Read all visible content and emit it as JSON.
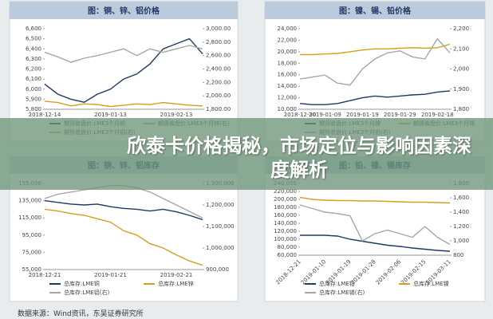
{
  "headline": "欣泰卡价格揭秘，市场定位与影响因素深度解析",
  "source": "数据来源：Wind资讯，东吴证券研究所",
  "chart_data": [
    {
      "type": "line",
      "title": "图：铜、锌、铝价格",
      "categories": [
        "2018-12-14",
        null,
        null,
        null,
        null,
        "2019-01-13",
        null,
        null,
        null,
        null,
        "2019-02-13",
        null,
        null
      ],
      "ylim": [
        5800,
        6600
      ],
      "yticks": [
        {
          "value": 5800,
          "label": "5,800"
        },
        {
          "value": 5900,
          "label": "5,900"
        },
        {
          "value": 6000,
          "label": "6,000"
        },
        {
          "value": 6100,
          "label": "6,100"
        },
        {
          "value": 6200,
          "label": "6,200"
        },
        {
          "value": 6300,
          "label": "6,300"
        },
        {
          "value": 6400,
          "label": "6,400"
        },
        {
          "value": 6500,
          "label": "6,500"
        },
        {
          "value": 6600,
          "label": "6,600"
        }
      ],
      "y2lim": [
        1800,
        3000
      ],
      "y2ticks": [
        {
          "value": 1800,
          "label": "1,800.00"
        },
        {
          "value": 2000,
          "label": "2,000.00"
        },
        {
          "value": 2200,
          "label": "2,200.00"
        },
        {
          "value": 2400,
          "label": "2,400.00"
        },
        {
          "value": 2600,
          "label": "2,600.00"
        },
        {
          "value": 2800,
          "label": "2,800.00"
        },
        {
          "value": 3000,
          "label": "3,000.00"
        }
      ],
      "series": [
        {
          "name": "期货收盘价:LME3个月铜",
          "color": "#1f3864",
          "values": [
            6050,
            5950,
            5900,
            5870,
            5950,
            6000,
            6100,
            6150,
            6250,
            6400,
            6450,
            6500,
            6350
          ]
        },
        {
          "name": "期货收盘价:LME3个月锌(右)",
          "color": "#a6a6a6",
          "axis": "y2",
          "values": [
            2650,
            2580,
            2500,
            2560,
            2600,
            2650,
            2700,
            2600,
            2700,
            2650,
            2700,
            2750,
            2700
          ]
        },
        {
          "name": "期货收盘价:LME3个月铝(右)",
          "color": "#d4a017",
          "axis": "y2",
          "values": [
            1920,
            1900,
            1850,
            1880,
            1870,
            1840,
            1860,
            1880,
            1870,
            1900,
            1880,
            1860,
            1850
          ]
        }
      ]
    },
    {
      "type": "line",
      "title": "图：镍、锡、铅价格",
      "categories": [
        "2018-12-30",
        null,
        "2019-01-09",
        null,
        null,
        "2019-01-19",
        null,
        null,
        "2019-01-29",
        null,
        null,
        "2019-02-18",
        null
      ],
      "ylim": [
        10000,
        24000
      ],
      "yticks": [
        {
          "value": 10000,
          "label": "10,000"
        },
        {
          "value": 12000,
          "label": "12,000"
        },
        {
          "value": 14000,
          "label": "14,000"
        },
        {
          "value": 16000,
          "label": "16,000"
        },
        {
          "value": 18000,
          "label": "18,000"
        },
        {
          "value": 20000,
          "label": "20,000"
        },
        {
          "value": 22000,
          "label": "22,000"
        },
        {
          "value": 24000,
          "label": "24,000"
        }
      ],
      "y2lim": [
        1800,
        2200
      ],
      "y2ticks": [
        {
          "value": 1800,
          "label": "1,800"
        },
        {
          "value": 1900,
          "label": "1,900"
        },
        {
          "value": 2000,
          "label": "2,000"
        },
        {
          "value": 2100,
          "label": "2,100"
        },
        {
          "value": 2200,
          "label": "2,200"
        }
      ],
      "series": [
        {
          "name": "期货收盘价:LME3个月镍",
          "color": "#1f3864",
          "values": [
            11000,
            10800,
            10800,
            11000,
            11500,
            12000,
            12300,
            12100,
            12300,
            12500,
            12600,
            13000,
            13200
          ]
        },
        {
          "name": "期货收盘价:LME3个月锡",
          "color": "#d4a017",
          "values": [
            19500,
            19500,
            19600,
            19700,
            20000,
            20300,
            20500,
            20500,
            20600,
            20700,
            20600,
            20700,
            21300
          ]
        },
        {
          "name": "期货收盘价:LME3个月铅(右)",
          "color": "#a6a6a6",
          "axis": "y2",
          "values": [
            1950,
            1960,
            1970,
            1930,
            1920,
            2000,
            2050,
            2080,
            2090,
            2060,
            2050,
            2150,
            2080
          ]
        }
      ]
    },
    {
      "type": "line",
      "title": "图：铜、锌、铝库存",
      "categories": [
        "2018-12-21",
        null,
        null,
        null,
        null,
        "2019-01-21",
        null,
        null,
        null,
        null,
        "2019-02-21",
        null,
        null
      ],
      "ylim": [
        55000,
        155000
      ],
      "yticks": [
        {
          "value": 55000,
          "label": "55,000"
        },
        {
          "value": 75000,
          "label": "75,000"
        },
        {
          "value": 95000,
          "label": "95,000"
        },
        {
          "value": 115000,
          "label": "115,000"
        },
        {
          "value": 135000,
          "label": "135,000"
        },
        {
          "value": 155000,
          "label": "155,000"
        }
      ],
      "y2lim": [
        900000,
        1300000
      ],
      "y2ticks": [
        {
          "value": 900000,
          "label": "900,000"
        },
        {
          "value": 1000000,
          "label": "1,000,000"
        },
        {
          "value": 1100000,
          "label": "1,100,000"
        },
        {
          "value": 1200000,
          "label": "1,200,000"
        },
        {
          "value": 1300000,
          "label": "1,300,000"
        }
      ],
      "series": [
        {
          "name": "总库存:LME铜",
          "color": "#1f3864",
          "values": [
            135000,
            133000,
            131000,
            130000,
            131000,
            128000,
            126000,
            125000,
            123000,
            125000,
            122000,
            118000,
            113000
          ]
        },
        {
          "name": "总库存:LME锌",
          "color": "#d4a017",
          "values": [
            125000,
            123000,
            120000,
            118000,
            114000,
            110000,
            100000,
            95000,
            85000,
            80000,
            72000,
            65000,
            60000
          ]
        },
        {
          "name": "总库存:LME铝(右)",
          "color": "#a6a6a6",
          "axis": "y2",
          "values": [
            1230000,
            1250000,
            1260000,
            1270000,
            1280000,
            1290000,
            1290000,
            1280000,
            1260000,
            1230000,
            1200000,
            1170000,
            1140000
          ]
        }
      ]
    },
    {
      "type": "line",
      "title": "图：铅、镍、锡库存",
      "categories": [
        "2018-12-21",
        null,
        "2019-01-10",
        null,
        "2019-01-19",
        null,
        "2019-01-28",
        null,
        "2019-02-06",
        null,
        "2019-02-15",
        null,
        "2019-03-11"
      ],
      "ylim": [
        60000,
        240000
      ],
      "yticks": [
        {
          "value": 60000,
          "label": "60,000"
        },
        {
          "value": 80000,
          "label": "80,000"
        },
        {
          "value": 100000,
          "label": "100,000"
        },
        {
          "value": 120000,
          "label": "120,000"
        },
        {
          "value": 140000,
          "label": "140,000"
        },
        {
          "value": 160000,
          "label": "160,000"
        },
        {
          "value": 180000,
          "label": "180,000"
        },
        {
          "value": 200000,
          "label": "200,000"
        },
        {
          "value": 220000,
          "label": "220,000"
        },
        {
          "value": 240000,
          "label": "240,000"
        }
      ],
      "y2lim": [
        800,
        1800
      ],
      "y2ticks": [
        800,
        {
          "value": 1000,
          "label": "1,000"
        },
        {
          "value": 1200,
          "label": "1,200"
        },
        {
          "value": 1400,
          "label": "1,400"
        },
        {
          "value": 1600,
          "label": "1,600"
        },
        {
          "value": 1800,
          "label": "1,800"
        }
      ],
      "series": [
        {
          "name": "总库存:LME铅",
          "color": "#1f3864",
          "values": [
            110000,
            110000,
            110000,
            108000,
            100000,
            95000,
            90000,
            85000,
            82000,
            78000,
            75000,
            72000,
            70000
          ]
        },
        {
          "name": "总库存:LME镍",
          "color": "#d4a017",
          "values": [
            205000,
            200000,
            198000,
            197000,
            197000,
            196000,
            196000,
            195000,
            194000,
            193000,
            193000,
            192000,
            191000
          ]
        },
        {
          "name": "总库存:LME锡(右)",
          "color": "#a6a6a6",
          "axis": "y2",
          "values": [
            1500,
            1450,
            1400,
            1380,
            1350,
            1000,
            1100,
            1150,
            1100,
            1050,
            1200,
            1050,
            950
          ]
        }
      ]
    }
  ]
}
